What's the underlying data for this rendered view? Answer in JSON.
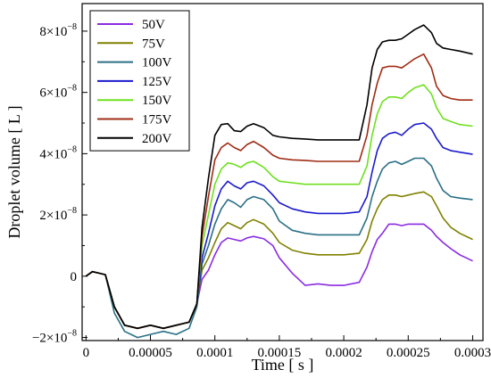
{
  "chart_data": {
    "type": "line",
    "xlabel": "Time [ s ]",
    "ylabel": "Droplet volume [ L ]",
    "xlim": [
      -3e-06,
      0.000308
    ],
    "ylim": [
      -2.1e-08,
      8.9e-08
    ],
    "x_ticks": [
      {
        "value": 0,
        "label": "0"
      },
      {
        "value": 5e-05,
        "label": "0.00005"
      },
      {
        "value": 0.0001,
        "label": "0.0001"
      },
      {
        "value": 0.00015,
        "label": "0.00015"
      },
      {
        "value": 0.0002,
        "label": "0.0002"
      },
      {
        "value": 0.00025,
        "label": "0.00025"
      },
      {
        "value": 0.0003,
        "label": "0.0003"
      }
    ],
    "y_ticks": [
      {
        "value": -2e-08,
        "mant": "−2×10",
        "exp": "−8"
      },
      {
        "value": 0,
        "mant": "0",
        "exp": ""
      },
      {
        "value": 2e-08,
        "mant": "2×10",
        "exp": "−8"
      },
      {
        "value": 4e-08,
        "mant": "4×10",
        "exp": "−8"
      },
      {
        "value": 6e-08,
        "mant": "6×10",
        "exp": "−8"
      },
      {
        "value": 8e-08,
        "mant": "8×10",
        "exp": "−8"
      }
    ],
    "x": [
      0,
      5e-06,
      1e-05,
      1.5e-05,
      2.2e-05,
      3e-05,
      4e-05,
      5e-05,
      6e-05,
      7e-05,
      8e-05,
      8.6e-05,
      9e-05,
      9.5e-05,
      0.0001,
      0.000105,
      0.00011,
      0.000115,
      0.00012,
      0.000125,
      0.00013,
      0.000138,
      0.000145,
      0.00015,
      0.00016,
      0.00017,
      0.00018,
      0.00019,
      0.0002,
      0.000212,
      0.000218,
      0.000222,
      0.000226,
      0.00023,
      0.000235,
      0.00024,
      0.000245,
      0.00025,
      0.000255,
      0.000262,
      0.000268,
      0.000272,
      0.000277,
      0.000283,
      0.00029,
      0.0003
    ],
    "legend": {
      "position": "top-left"
    },
    "grid": false,
    "series": [
      {
        "name": "50V",
        "color": "#8a2be2",
        "values": [
          0,
          0.15,
          0.1,
          0.05,
          -1.0,
          -1.6,
          -1.7,
          -1.6,
          -1.7,
          -1.6,
          -1.5,
          -0.9,
          -0.1,
          0.2,
          0.7,
          1.1,
          1.25,
          1.2,
          1.15,
          1.25,
          1.3,
          1.22,
          1.0,
          0.6,
          0.1,
          -0.3,
          -0.25,
          -0.3,
          -0.3,
          -0.2,
          0.3,
          0.8,
          1.2,
          1.4,
          1.7,
          1.7,
          1.65,
          1.7,
          1.7,
          1.7,
          1.5,
          1.3,
          1.1,
          0.9,
          0.7,
          0.5
        ]
      },
      {
        "name": "75V",
        "color": "#808000",
        "values": [
          0,
          0.15,
          0.1,
          0.05,
          -1.0,
          -1.6,
          -1.7,
          -1.6,
          -1.7,
          -1.6,
          -1.5,
          -0.9,
          0.2,
          0.6,
          1.1,
          1.55,
          1.75,
          1.65,
          1.55,
          1.75,
          1.85,
          1.7,
          1.4,
          1.1,
          0.85,
          0.75,
          0.7,
          0.7,
          0.7,
          0.75,
          1.2,
          1.8,
          2.2,
          2.5,
          2.65,
          2.65,
          2.6,
          2.65,
          2.7,
          2.75,
          2.6,
          2.3,
          1.9,
          1.6,
          1.4,
          1.2
        ]
      },
      {
        "name": "100V",
        "color": "#2a6f86",
        "values": [
          0,
          0.15,
          0.1,
          0.05,
          -1.2,
          -1.8,
          -2.0,
          -1.9,
          -1.8,
          -1.9,
          -1.7,
          -1.0,
          0.4,
          1.0,
          1.7,
          2.2,
          2.5,
          2.4,
          2.25,
          2.5,
          2.6,
          2.5,
          2.2,
          1.8,
          1.5,
          1.4,
          1.35,
          1.35,
          1.35,
          1.35,
          1.9,
          2.6,
          3.1,
          3.5,
          3.7,
          3.75,
          3.65,
          3.75,
          3.85,
          3.85,
          3.6,
          3.2,
          2.8,
          2.6,
          2.55,
          2.5
        ]
      },
      {
        "name": "125V",
        "color": "#1a1acd",
        "values": [
          0,
          0.15,
          0.1,
          0.05,
          -1.0,
          -1.6,
          -1.7,
          -1.6,
          -1.7,
          -1.6,
          -1.5,
          -0.9,
          0.6,
          1.4,
          2.3,
          2.85,
          3.1,
          2.95,
          2.85,
          3.05,
          3.1,
          2.95,
          2.65,
          2.4,
          2.2,
          2.1,
          2.05,
          2.05,
          2.05,
          2.1,
          2.6,
          3.4,
          4.1,
          4.5,
          4.65,
          4.7,
          4.6,
          4.8,
          4.95,
          5.0,
          4.8,
          4.5,
          4.2,
          4.1,
          4.05,
          3.98
        ]
      },
      {
        "name": "150V",
        "color": "#6fe01f",
        "values": [
          0,
          0.15,
          0.1,
          0.05,
          -1.0,
          -1.6,
          -1.7,
          -1.6,
          -1.7,
          -1.6,
          -1.5,
          -0.9,
          1.0,
          2.0,
          3.0,
          3.5,
          3.7,
          3.65,
          3.55,
          3.7,
          3.75,
          3.55,
          3.25,
          3.1,
          3.05,
          3.0,
          3.0,
          3.0,
          3.0,
          3.0,
          3.6,
          4.6,
          5.3,
          5.7,
          5.85,
          5.85,
          5.8,
          6.0,
          6.15,
          6.25,
          5.95,
          5.5,
          5.15,
          5.05,
          4.95,
          4.9
        ]
      },
      {
        "name": "175V",
        "color": "#a02b14",
        "values": [
          0,
          0.15,
          0.1,
          0.05,
          -1.0,
          -1.6,
          -1.7,
          -1.6,
          -1.7,
          -1.6,
          -1.5,
          -0.9,
          1.3,
          2.6,
          3.8,
          4.2,
          4.35,
          4.2,
          4.1,
          4.3,
          4.4,
          4.2,
          3.95,
          3.85,
          3.8,
          3.78,
          3.75,
          3.75,
          3.75,
          3.75,
          4.6,
          5.6,
          6.3,
          6.8,
          6.85,
          6.85,
          6.8,
          6.95,
          7.1,
          7.25,
          6.8,
          6.2,
          5.9,
          5.8,
          5.75,
          5.75
        ]
      },
      {
        "name": "200V",
        "color": "#000000",
        "values": [
          0,
          0.15,
          0.1,
          0.05,
          -1.0,
          -1.6,
          -1.7,
          -1.6,
          -1.7,
          -1.6,
          -1.5,
          -0.9,
          1.6,
          3.2,
          4.6,
          4.95,
          4.98,
          4.75,
          4.72,
          4.9,
          4.98,
          4.85,
          4.6,
          4.55,
          4.5,
          4.48,
          4.45,
          4.45,
          4.45,
          4.45,
          5.6,
          6.8,
          7.4,
          7.65,
          7.7,
          7.7,
          7.75,
          7.9,
          8.05,
          8.2,
          7.95,
          7.6,
          7.45,
          7.4,
          7.35,
          7.25
        ]
      }
    ]
  }
}
